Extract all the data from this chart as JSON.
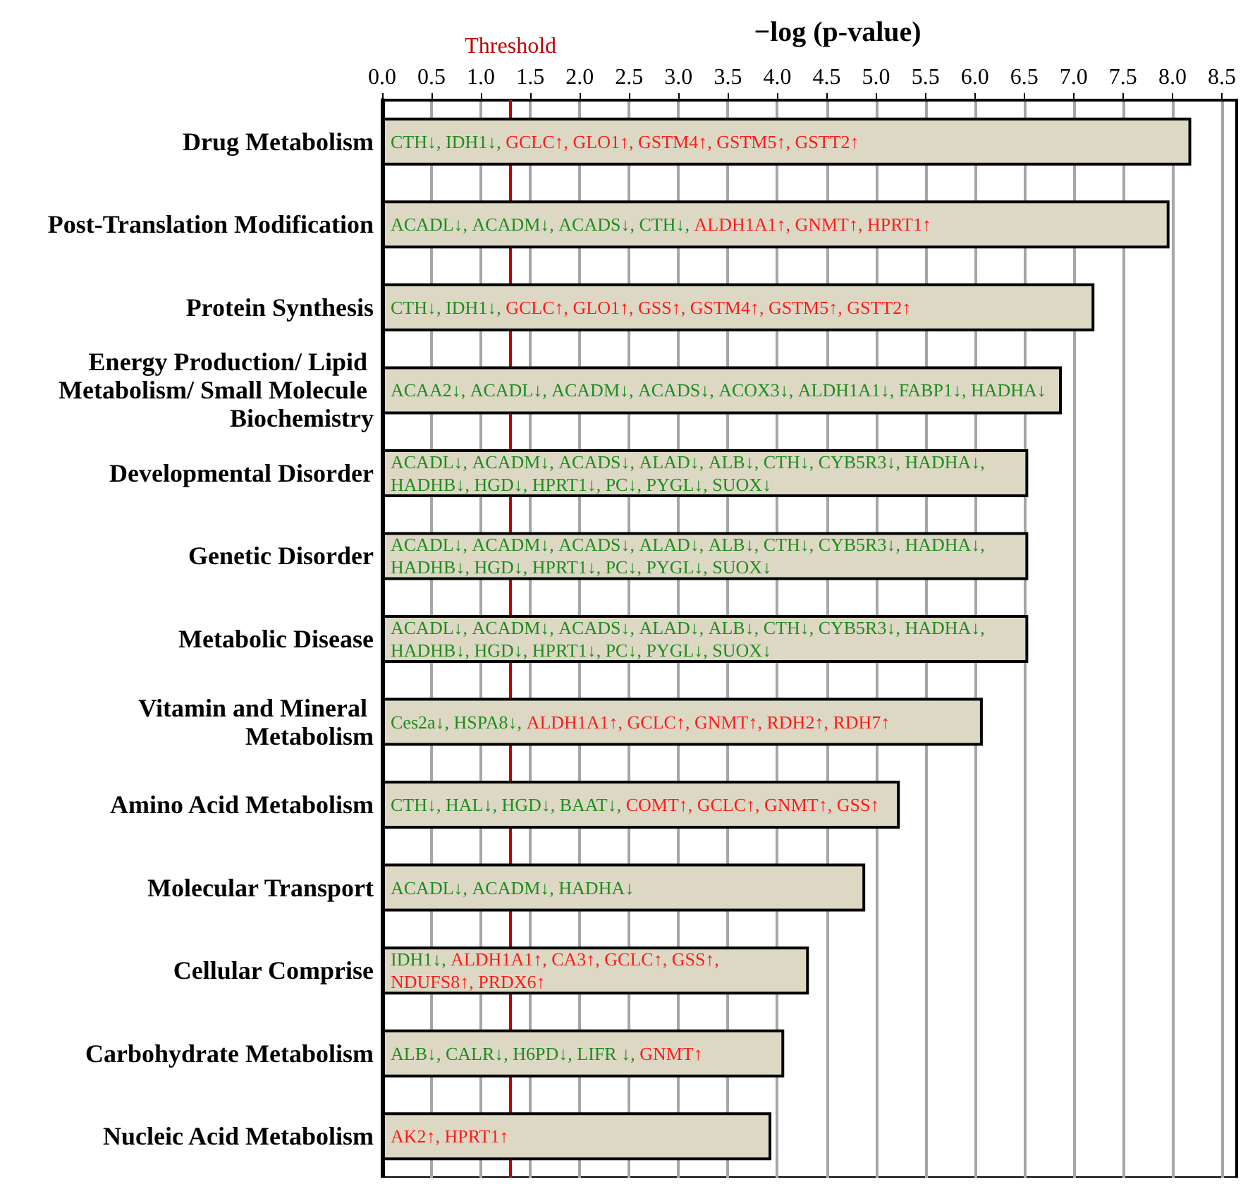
{
  "chart_data": {
    "type": "bar",
    "orientation": "horizontal",
    "xlabel": "−log (p-value)",
    "categories": [
      "Drug Metabolism",
      "Post-Translation Modification",
      "Protein Synthesis",
      "Energy Production/ Lipid Metabolism/ Small Molecule Biochemistry",
      "Developmental Disorder",
      "Genetic Disorder",
      "Metabolic Disease",
      "Vitamin and Mineral Metabolism",
      "Amino Acid Metabolism",
      "Molecular Transport",
      "Cellular Comprise",
      "Carbohydrate Metabolism",
      "Nucleic Acid Metabolism"
    ],
    "values": [
      8.19,
      7.97,
      7.21,
      6.88,
      6.54,
      6.54,
      6.54,
      6.08,
      5.24,
      4.89,
      4.32,
      4.07,
      3.94
    ],
    "color": "#ddd8c4",
    "xlim": [
      0,
      8.65
    ],
    "xticks": [
      {
        "value": 0,
        "label": "0.0"
      },
      0.5,
      {
        "value": 1,
        "label": "1.0"
      },
      1.5,
      {
        "value": 2,
        "label": "2.0"
      },
      2.5,
      {
        "value": 3,
        "label": "3.0"
      },
      3.5,
      {
        "value": 4,
        "label": "4.0"
      },
      4.5,
      {
        "value": 5,
        "label": "5.0"
      },
      5.5,
      {
        "value": 6,
        "label": "6.0"
      },
      6.5,
      {
        "value": 7,
        "label": "7.0"
      },
      7.5,
      {
        "value": 8,
        "label": "8.0"
      },
      8.5
    ],
    "grid": "x",
    "ref_lines": [
      {
        "axis": "x",
        "value": 1.3,
        "label": "Threshold",
        "color": "#c00000"
      }
    ],
    "annotations": [
      "CTH↓, IDH1↓, GCLC↑, GLO1↑, GSTM4↑, GSTM5↑, GSTT2↑",
      "ACADL↓, ACADM↓, ACADS↓, CTH↓, ALDH1A1↑, GNMT↑, HPRT1↑",
      "CTH↓, IDH1↓, GCLC↑, GLO1↑, GSS↑, GSTM4↑, GSTM5↑, GSTT2↑",
      "ACAA2↓, ACADL↓, ACADM↓, ACADS↓, ACOX3↓, ALDH1A1↓, FABP1↓, HADHA↓",
      "ACADL↓, ACADM↓, ACADS↓, ALAD↓, ALB↓, CTH↓, CYB5R3↓, HADHA↓, HADHB↓, HGD↓, HPRT1↓, PC↓, PYGL↓, SUOX↓",
      "ACADL↓, ACADM↓, ACADS↓, ALAD↓, ALB↓, CTH↓, CYB5R3↓, HADHA↓, HADHB↓, HGD↓, HPRT1↓, PC↓, PYGL↓, SUOX↓",
      "ACADL↓, ACADM↓, ACADS↓, ALAD↓, ALB↓, CTH↓, CYB5R3↓, HADHA↓, HADHB↓, HGD↓, HPRT1↓, PC↓, PYGL↓, SUOX↓",
      "Ces2a↓, HSPA8↓, ALDH1A1↑, GCLC↑, GNMT↑, RDH2↑, RDH7↑",
      "CTH↓, HAL↓, HGD↓, BAAT↓, COMT↑, GCLC↑, GNMT↑, GSS↑",
      "ACADL↓, ACADM↓, HADHA↓",
      "IDH1↓, ALDH1A1↑, CA3↑, GCLC↑, GSS↑, NDUFS8↑, PRDX6↑",
      "ALB↓, CALR↓, H6PD↓, LIFR ↓, GNMT↑",
      "AK2↑, HPRT1↑"
    ]
  }
}
